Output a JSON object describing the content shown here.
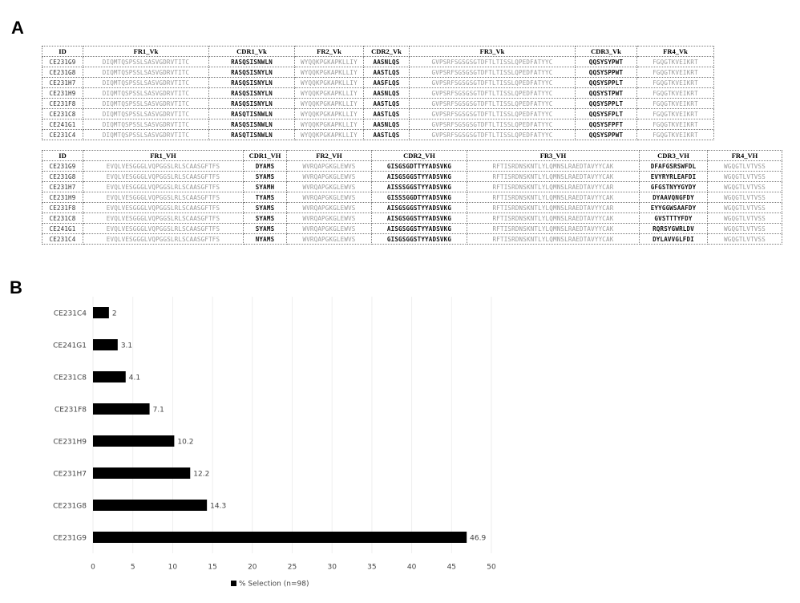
{
  "panel_a": {
    "label": "A",
    "table_vk": {
      "header": [
        "ID",
        "FR1_Vk",
        "CDR1_Vk",
        "FR2_Vk",
        "CDR2_Vk",
        "FR3_Vk",
        "CDR3_Vk",
        "FR4_Vk"
      ],
      "rows": [
        [
          "CE231G9",
          "DIQMTQSPSSLSASVGDRVTITC",
          "RASQSISNWLN",
          "WYQQKPGKAPKLLIY",
          "AASNLQS",
          "GVPSRFSGSGSGTDFTLTISSLQPEDFATYYC",
          "QQSYSYPWT",
          "FGQGTKVEIKRT"
        ],
        [
          "CE231G8",
          "DIQMTQSPSSLSASVGDRVTITC",
          "RASQSISNYLN",
          "WYQQKPGKAPKLLIY",
          "AASTLQS",
          "GVPSRFSGSGSGTDFTLTISSLQPEDFATYYC",
          "QQSYSPPWT",
          "FGQGTKVEIKRT"
        ],
        [
          "CE231H7",
          "DIQMTQSPSSLSASVGDRVTITC",
          "RASQSISNYLN",
          "WYQQKPGKAPKLLIY",
          "AASFLQS",
          "GVPSRFSGSGSGTDFTLTISSLQPEDFATYYC",
          "QQSYSPPLT",
          "FGQGTKVEIKRT"
        ],
        [
          "CE231H9",
          "DIQMTQSPSSLSASVGDRVTITC",
          "RASQSISNYLN",
          "WYQQKPGKAPKLLIY",
          "AASNLQS",
          "GVPSRFSGSGSGTDFTLTISSLQPEDFATYYC",
          "QQSYSTPWT",
          "FGQGTKVEIKRT"
        ],
        [
          "CE231F8",
          "DIQMTQSPSSLSASVGDRVTITC",
          "RASQSISNYLN",
          "WYQQKPGKAPKLLIY",
          "AASTLQS",
          "GVPSRFSGSGSGTDFTLTISSLQPEDFATYYC",
          "QQSYSPPLT",
          "FGQGTKVEIKRT"
        ],
        [
          "CE231C8",
          "DIQMTQSPSSLSASVGDRVTITC",
          "RASQTISNWLN",
          "WYQQKPGKAPKLLIY",
          "AASTLQS",
          "GVPSRFSGSGSGTDFTLTISSLQPEDFATYYC",
          "QQSYSFPLT",
          "FGQGTKVEIKRT"
        ],
        [
          "CE241G1",
          "DIQMTQSPSSLSASVGDRVTITC",
          "RASQSISNWLN",
          "WYQQKPGKAPKLLIY",
          "AASNLQS",
          "GVPSRFSGSGSGTDFTLTISSLQPEDFATYYC",
          "QQSYSFPFT",
          "FGQGTKVEIKRT"
        ],
        [
          "CE231C4",
          "DIQMTQSPSSLSASVGDRVTITC",
          "RASQTISNWLN",
          "WYQQKPGKAPKLLIY",
          "AASTLQS",
          "GVPSRFSGSGSGTDFTLTISSLQPEDFATYYC",
          "QQSYSPPWT",
          "FGQGTKVEIKRT"
        ]
      ]
    },
    "table_vh": {
      "header": [
        "ID",
        "FR1_VH",
        "CDR1_VH",
        "FR2_VH",
        "CDR2_VH",
        "FR3_VH",
        "CDR3_VH",
        "FR4_VH"
      ],
      "rows": [
        [
          "CE231G9",
          "EVQLVESGGGLVQPGGSLRLSCAASGFTFS",
          "DYAMS",
          "WVRQAPGKGLEWVS",
          "GISGSGDTTYYADSVKG",
          "RFTISRDNSKNTLYLQMNSLRAEDTAVYYCAK",
          "DFAFGSRSWFDL",
          "WGQGTLVTVSS"
        ],
        [
          "CE231G8",
          "EVQLVESGGGLVQPGGSLRLSCAASGFTFS",
          "SYAMS",
          "WVRQAPGKGLEWVS",
          "AISGSGGSTYYADSVKG",
          "RFTISRDNSKNTLYLQMNSLRAEDTAVYYCAK",
          "EVYRYRLEAFDI",
          "WGQGTLVTVSS"
        ],
        [
          "CE231H7",
          "EVQLVESGGGLVQPGGSLRLSCAASGFTFS",
          "SYAMH",
          "WVRQAPGKGLEWVS",
          "AISSSGGSTYYADSVKG",
          "RFTISRDNSKNTLYLQMNSLRAEDTAVYYCAR",
          "GFGSTNYYGYDY",
          "WGQGTLVTVSS"
        ],
        [
          "CE231H9",
          "EVQLVESGGGLVQPGGSLRLSCAASGFTFS",
          "TYAMS",
          "WVRQAPGKGLEWVS",
          "GISSSGGDTYYADSVKG",
          "RFTISRDNSKNTLYLQMNSLRAEDTAVYYCAK",
          "DYAAVQNGFDY",
          "WGQGTLVTVSS"
        ],
        [
          "CE231F8",
          "EVQLVESGGGLVQPGGSLRLSCAASGFTFS",
          "SYAMS",
          "WVRQAPGKGLEWVS",
          "AISGSGGSTYYADSVKG",
          "RFTISRDNSKNTLYLQMNSLRAEDTAVYYCAR",
          "EYYGGWSAAFDY",
          "WGQGTLVTVSS"
        ],
        [
          "CE231C8",
          "EVQLVESGGGLVQPGGSLRLSCAASGFTFS",
          "SYAMS",
          "WVRQAPGKGLEWVS",
          "AISGSGGSTYYADSVKG",
          "RFTISRDNSKNTLYLQMNSLRAEDTAVYYCAK",
          "GVSTTTYFDY",
          "WGQGTLVTVSS"
        ],
        [
          "CE241G1",
          "EVQLVESGGGLVQPGGSLRLSCAASGFTFS",
          "SYAMS",
          "WVRQAPGKGLEWVS",
          "AISGSGGSTYYADSVKG",
          "RFTISRDNSKNTLYLQMNSLRAEDTAVYYCAK",
          "RQRSYGWRLDV",
          "WGQGTLVTVSS"
        ],
        [
          "CE231C4",
          "EVQLVESGGGLVQPGGSLRLSCAASGFTFS",
          "NYAMS",
          "WVRQAPGKGLEWVS",
          "GISGSGGSTYYADSVKG",
          "RFTISRDNSKNTLYLQMNSLRAEDTAVYYCAK",
          "DYLAVVGLFDI",
          "WGQGTLVTVSS"
        ]
      ]
    }
  },
  "panel_b": {
    "label": "B"
  },
  "chart_data": {
    "type": "hbar",
    "categories": [
      "CE231C4",
      "CE241G1",
      "CE231C8",
      "CE231F8",
      "CE231H9",
      "CE231H7",
      "CE231G8",
      "CE231G9"
    ],
    "series": [
      {
        "name": "% Selection (n=98)",
        "color": "#000000",
        "values": [
          2,
          3.1,
          4.1,
          7.1,
          10.2,
          12.2,
          14.3,
          46.9
        ]
      }
    ],
    "xlim": [
      0,
      50
    ],
    "xticks": [
      0,
      5,
      10,
      15,
      20,
      25,
      30,
      35,
      40,
      45,
      50
    ],
    "grid": true,
    "legend": "bottom"
  }
}
